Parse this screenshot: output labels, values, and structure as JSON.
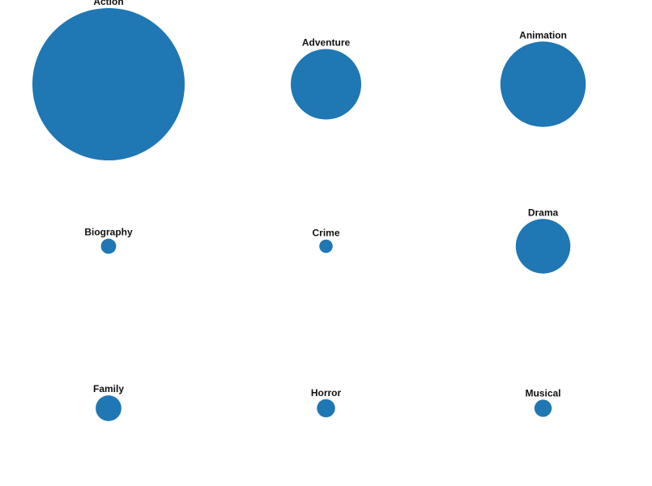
{
  "chart_data": {
    "type": "bubble-grid",
    "color": "#1f77b4",
    "grid": {
      "columns": 3,
      "rows": 3
    },
    "categories": [
      "Action",
      "Adventure",
      "Animation",
      "Biography",
      "Crime",
      "Drama",
      "Family",
      "Horror",
      "Musical"
    ],
    "values": [
      35,
      7.5,
      11,
      0.35,
      0.27,
      4.5,
      1,
      0.5,
      0.45
    ]
  }
}
